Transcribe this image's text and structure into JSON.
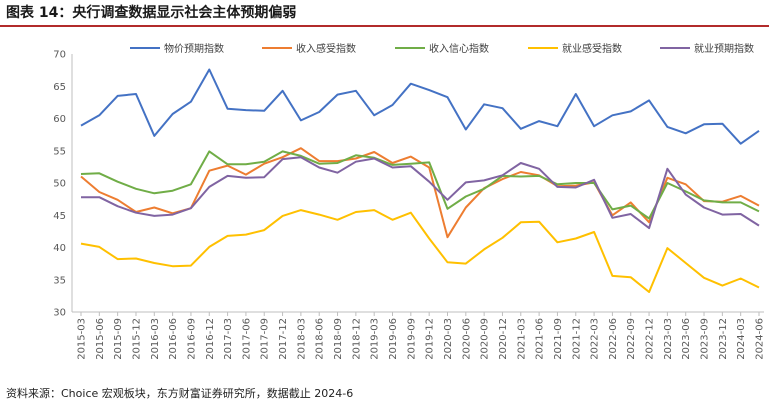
{
  "figure": {
    "title": "图表 14：央行调查数据显示社会主体预期偏弱",
    "source": "资料来源：Choice 宏观板块，东方财富证券研究所，数据截止 2024-6"
  },
  "chart_data": {
    "type": "line",
    "title": "",
    "xlabel": "",
    "ylabel": "",
    "ylim": [
      30,
      70
    ],
    "yticks": [
      30,
      35,
      40,
      45,
      50,
      55,
      60,
      65,
      70
    ],
    "grid": false,
    "legend_position": "top",
    "x": [
      "2015-03",
      "2015-06",
      "2015-09",
      "2015-12",
      "2016-03",
      "2016-06",
      "2016-09",
      "2016-12",
      "2017-03",
      "2017-06",
      "2017-09",
      "2017-12",
      "2018-03",
      "2018-06",
      "2018-09",
      "2018-12",
      "2019-03",
      "2019-06",
      "2019-09",
      "2019-12",
      "2020-03",
      "2020-06",
      "2020-09",
      "2020-12",
      "2021-03",
      "2021-06",
      "2021-09",
      "2021-12",
      "2022-03",
      "2022-06",
      "2022-09",
      "2022-12",
      "2023-03",
      "2023-06",
      "2023-09",
      "2023-12",
      "2024-03",
      "2024-06"
    ],
    "series": [
      {
        "name": "物价预期指数",
        "color": "#4472C4",
        "values": [
          58.9,
          60.5,
          63.5,
          63.8,
          57.3,
          60.7,
          62.6,
          67.6,
          61.5,
          61.3,
          61.2,
          64.3,
          59.7,
          61.0,
          63.7,
          64.3,
          60.5,
          62.1,
          65.4,
          64.4,
          63.3,
          58.3,
          62.2,
          61.6,
          58.4,
          59.6,
          58.8,
          63.8,
          58.8,
          60.5,
          61.1,
          62.8,
          58.7,
          57.7,
          59.1,
          59.2,
          56.1,
          58.1
        ]
      },
      {
        "name": "收入感受指数",
        "color": "#ED7D31",
        "values": [
          51.0,
          48.6,
          47.4,
          45.5,
          46.2,
          45.3,
          46.1,
          51.9,
          52.7,
          51.3,
          53.0,
          54.0,
          55.4,
          53.4,
          53.4,
          53.8,
          54.8,
          53.1,
          54.1,
          52.4,
          41.6,
          46.2,
          49.2,
          50.6,
          51.7,
          51.2,
          49.5,
          49.6,
          50.1,
          45.0,
          47.0,
          43.9,
          50.8,
          49.8,
          47.2,
          47.1,
          48.0,
          46.5
        ]
      },
      {
        "name": "收入信心指数",
        "color": "#70AD47",
        "values": [
          51.4,
          51.5,
          50.2,
          49.1,
          48.4,
          48.8,
          49.8,
          54.9,
          52.9,
          52.9,
          53.3,
          54.9,
          54.2,
          53.0,
          53.1,
          54.3,
          53.9,
          52.8,
          53.0,
          53.2,
          46.0,
          47.9,
          49.1,
          51.1,
          51.0,
          51.1,
          49.8,
          50.0,
          50.0,
          45.9,
          46.5,
          44.5,
          50.0,
          48.7,
          47.3,
          47.0,
          47.0,
          45.6
        ]
      },
      {
        "name": "就业感受指数",
        "color": "#FFC000",
        "values": [
          40.6,
          40.1,
          38.2,
          38.3,
          37.6,
          37.1,
          37.2,
          40.1,
          41.8,
          42.0,
          42.7,
          44.9,
          45.8,
          45.1,
          44.3,
          45.5,
          45.8,
          44.3,
          45.4,
          41.4,
          37.7,
          37.5,
          39.7,
          41.5,
          43.9,
          44.0,
          40.8,
          41.4,
          42.4,
          35.6,
          35.4,
          33.1,
          39.9,
          37.6,
          35.3,
          34.1,
          35.2,
          33.8
        ]
      },
      {
        "name": "就业预期指数",
        "color": "#8064A2",
        "values": [
          47.8,
          47.8,
          46.4,
          45.4,
          44.9,
          45.1,
          46.1,
          49.4,
          51.1,
          50.8,
          50.9,
          53.7,
          54.0,
          52.4,
          51.6,
          53.3,
          53.8,
          52.4,
          52.6,
          50.2,
          47.4,
          50.1,
          50.4,
          51.2,
          53.1,
          52.2,
          49.4,
          49.3,
          50.5,
          44.6,
          45.2,
          43.0,
          52.2,
          48.2,
          46.2,
          45.1,
          45.2,
          43.4
        ]
      }
    ]
  }
}
